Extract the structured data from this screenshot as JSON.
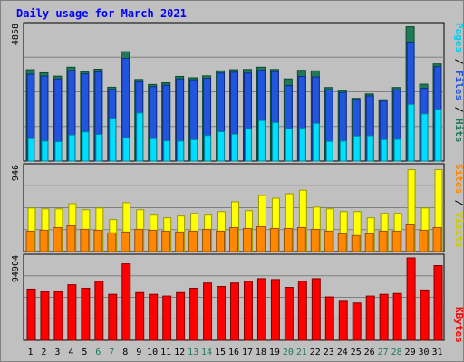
{
  "chart_data": {
    "type": "bar",
    "title": "Daily usage for March 2021",
    "categories": [
      "1",
      "2",
      "3",
      "4",
      "5",
      "6",
      "7",
      "8",
      "9",
      "10",
      "11",
      "12",
      "13",
      "14",
      "15",
      "16",
      "17",
      "18",
      "19",
      "20",
      "21",
      "22",
      "23",
      "24",
      "25",
      "26",
      "27",
      "28",
      "29",
      "30",
      "31"
    ],
    "weekend_days": [
      "6",
      "7",
      "13",
      "14",
      "20",
      "21",
      "27",
      "28"
    ],
    "panels": [
      {
        "name": "hits-panel",
        "ymax_label": "4858",
        "ymax": 4858,
        "series": [
          {
            "name": "Hits",
            "color": "#1f7a55",
            "values": [
              3290,
              3180,
              3060,
              3380,
              3220,
              3310,
              2660,
              3940,
              2940,
              2760,
              2820,
              3050,
              3000,
              3070,
              3250,
              3290,
              3300,
              3380,
              3300,
              2960,
              3270,
              3250,
              2650,
              2540,
              2260,
              2420,
              2210,
              2650,
              4840,
              2770,
              3500
            ]
          },
          {
            "name": "Files",
            "color": "#2255dd",
            "values": [
              3130,
              3060,
              2960,
              3260,
              3140,
              3210,
              2580,
              3700,
              2860,
              2680,
              2730,
              2960,
              2930,
              2980,
              3170,
              3200,
              3170,
              3270,
              3220,
              2720,
              3050,
              3030,
              2570,
              2470,
              2220,
              2350,
              2160,
              2570,
              4290,
              2620,
              3400
            ]
          },
          {
            "name": "Pages",
            "color": "#00ddff",
            "values": [
              810,
              720,
              700,
              940,
              1050,
              960,
              1540,
              840,
              1730,
              810,
              730,
              720,
              770,
              920,
              1060,
              970,
              1170,
              1460,
              1390,
              1170,
              1190,
              1360,
              710,
              720,
              900,
              910,
              770,
              780,
              2040,
              1700,
              1860
            ]
          }
        ]
      },
      {
        "name": "visits-panel",
        "ymax_label": "946",
        "ymax": 946,
        "series": [
          {
            "name": "Visits",
            "color": "#ffff00",
            "values": [
              490,
              480,
              480,
              540,
              470,
              490,
              360,
              550,
              470,
              410,
              380,
              400,
              430,
              410,
              450,
              560,
              460,
              630,
              600,
              650,
              690,
              500,
              480,
              450,
              450,
              380,
              430,
              430,
              920,
              490,
              920
            ]
          },
          {
            "name": "Sites",
            "color": "#ff8800",
            "values": [
              230,
              240,
              270,
              290,
              250,
              240,
              210,
              220,
              250,
              240,
              230,
              220,
              230,
              250,
              230,
              270,
              260,
              280,
              260,
              260,
              270,
              250,
              230,
              200,
              180,
              200,
              230,
              230,
              300,
              240,
              270
            ]
          }
        ]
      },
      {
        "name": "kbytes-panel",
        "ymax_label": "94904",
        "ymax": 94904,
        "series": [
          {
            "name": "KBytes",
            "color": "#ff0000",
            "values": [
              59000,
              56000,
              56000,
              64000,
              60000,
              68000,
              53000,
              88000,
              55000,
              53000,
              51000,
              55000,
              60000,
              66000,
              62000,
              66000,
              68000,
              71000,
              70000,
              61000,
              68000,
              71000,
              50000,
              45000,
              43000,
              51000,
              53000,
              54000,
              94904,
              58000,
              86000
            ]
          }
        ]
      }
    ],
    "legend_hits": [
      {
        "text": "Pages",
        "color": "#00ccee"
      },
      {
        "text": " / ",
        "color": "#000000"
      },
      {
        "text": "Files",
        "color": "#2255dd"
      },
      {
        "text": " / ",
        "color": "#000000"
      },
      {
        "text": "Hits",
        "color": "#1f7a55"
      }
    ],
    "legend_visits": [
      {
        "text": "Sites",
        "color": "#ff8800"
      },
      {
        "text": " / ",
        "color": "#000000"
      },
      {
        "text": "Visits",
        "color": "#cccc00"
      }
    ],
    "legend_kbytes": [
      {
        "text": "KBytes",
        "color": "#ff0000"
      }
    ],
    "colors": {
      "background": "#c0c0c0",
      "plot_bg": "#c0c0c0",
      "weekday_label": "#000000",
      "weekend_label": "#1f7a55",
      "title": "#0000ff"
    }
  }
}
